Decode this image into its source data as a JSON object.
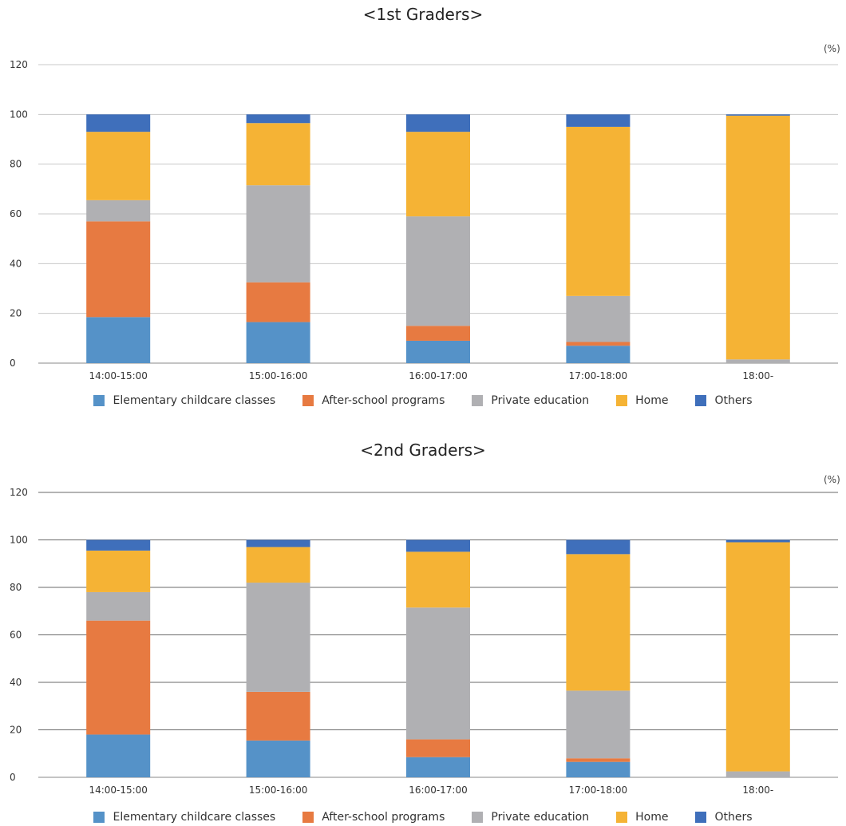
{
  "chart_data": [
    {
      "type": "bar",
      "stacked": true,
      "title": "<1st Graders>",
      "unit": "(%)",
      "ylim": [
        0,
        120
      ],
      "yticks": [
        0,
        20,
        40,
        60,
        80,
        100,
        120
      ],
      "grid": true,
      "legend_position": "bottom",
      "categories": [
        "14:00-15:00",
        "15:00-16:00",
        "16:00-17:00",
        "17:00-18:00",
        "18:00-"
      ],
      "series": [
        {
          "name": "Elementary childcare classes",
          "color": "#5592c8",
          "values": [
            18.5,
            16.5,
            9,
            7,
            0
          ]
        },
        {
          "name": "After-school programs",
          "color": "#e77a41",
          "values": [
            38.5,
            16,
            6,
            1.5,
            0
          ]
        },
        {
          "name": "Private education",
          "color": "#b0b0b3",
          "values": [
            8.5,
            39,
            44,
            18.5,
            1.5
          ]
        },
        {
          "name": "Home",
          "color": "#f5b335",
          "values": [
            27.5,
            25,
            34,
            68,
            98
          ]
        },
        {
          "name": "Others",
          "color": "#3f6fbb",
          "values": [
            7,
            3.5,
            7,
            5,
            0.5
          ]
        }
      ]
    },
    {
      "type": "bar",
      "stacked": true,
      "title": "<2nd Graders>",
      "unit": "(%)",
      "ylim": [
        0,
        120
      ],
      "yticks": [
        0,
        20,
        40,
        60,
        80,
        100,
        120
      ],
      "grid": true,
      "legend_position": "bottom",
      "categories": [
        "14:00-15:00",
        "15:00-16:00",
        "16:00-17:00",
        "17:00-18:00",
        "18:00-"
      ],
      "series": [
        {
          "name": "Elementary childcare classes",
          "color": "#5592c8",
          "values": [
            18,
            15.5,
            8.5,
            6.5,
            0
          ]
        },
        {
          "name": "After-school programs",
          "color": "#e77a41",
          "values": [
            48,
            20.5,
            7.5,
            1.5,
            0
          ]
        },
        {
          "name": "Private education",
          "color": "#b0b0b3",
          "values": [
            12,
            46,
            55.5,
            28.5,
            2.5
          ]
        },
        {
          "name": "Home",
          "color": "#f5b335",
          "values": [
            17.5,
            15,
            23.5,
            57.5,
            96.5
          ]
        },
        {
          "name": "Others",
          "color": "#3f6fbb",
          "values": [
            4.5,
            3,
            5,
            6,
            1
          ]
        }
      ]
    }
  ]
}
